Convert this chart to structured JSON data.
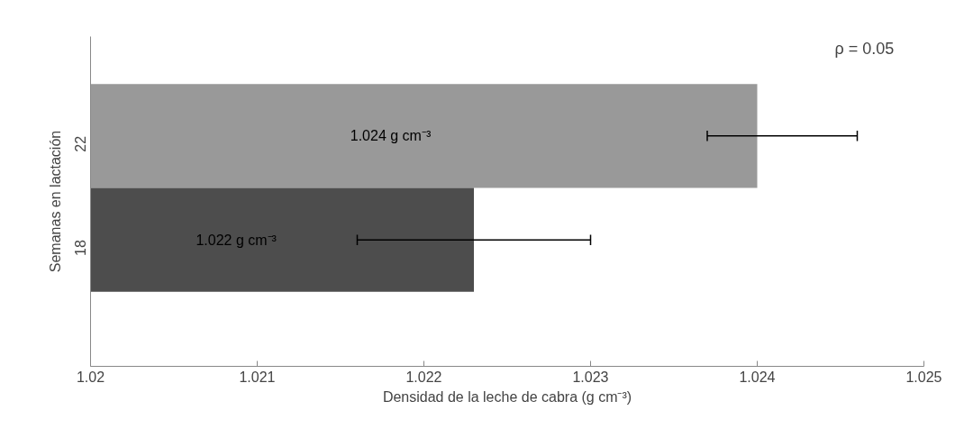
{
  "chart_data": {
    "type": "bar",
    "orientation": "horizontal",
    "xlabel": "Densidad de la leche de cabra (g cm⁻³)",
    "ylabel": "Semanas en lactación",
    "categories": [
      "22",
      "18"
    ],
    "series": [
      {
        "colors": [
          "#999999",
          "#4d4d4d"
        ],
        "values": [
          1.024,
          1.0223
        ],
        "errors": [
          [
            1.0237,
            1.0246
          ],
          [
            1.0216,
            1.023
          ]
        ],
        "value_labels": [
          "1.024 g cm⁻³",
          "1.022 g cm⁻³"
        ]
      }
    ],
    "xlim": [
      1.02,
      1.025
    ],
    "xticks": [
      1.02,
      1.021,
      1.022,
      1.023,
      1.024,
      1.025
    ],
    "annotations": [
      "ρ = 0.05"
    ],
    "grid": false
  }
}
